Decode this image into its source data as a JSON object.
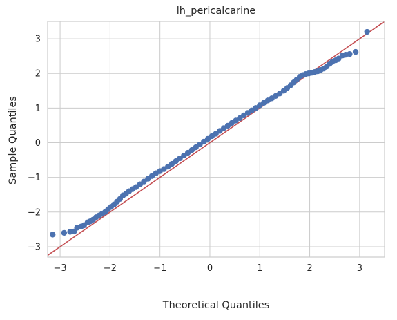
{
  "chart_data": {
    "type": "scatter",
    "title": "lh_pericalcarine",
    "xlabel": "Theoretical Quantiles",
    "ylabel": "Sample Quantiles",
    "xlim": [
      -3.25,
      3.5
    ],
    "ylim": [
      -3.3,
      3.5
    ],
    "xticks": [
      -3,
      -2,
      -1,
      0,
      1,
      2,
      3
    ],
    "yticks": [
      -3,
      -2,
      -1,
      0,
      1,
      2,
      3
    ],
    "grid": true,
    "point_color": "#4c72b0",
    "line_color": "#c44e52",
    "reference_line": {
      "slope": 1,
      "intercept": 0
    },
    "series": [
      {
        "x": [
          -3.15,
          -2.92,
          -2.8,
          -2.72,
          -2.66,
          -2.58,
          -2.52,
          -2.45,
          -2.4,
          -2.34,
          -2.28,
          -2.22,
          -2.16,
          -2.1,
          -2.04,
          -1.98,
          -1.92,
          -1.86,
          -1.8,
          -1.74,
          -1.68,
          -1.62,
          -1.55,
          -1.48,
          -1.4,
          -1.32,
          -1.24,
          -1.16,
          -1.08,
          -1.0,
          -0.92,
          -0.84,
          -0.76,
          -0.68,
          -0.6,
          -0.52,
          -0.44,
          -0.36,
          -0.28,
          -0.2,
          -0.12,
          -0.04,
          0.04,
          0.12,
          0.2,
          0.28,
          0.36,
          0.44,
          0.52,
          0.6,
          0.68,
          0.76,
          0.84,
          0.92,
          1.0,
          1.08,
          1.16,
          1.24,
          1.32,
          1.4,
          1.48,
          1.55,
          1.62,
          1.68,
          1.74,
          1.8,
          1.86,
          1.92,
          1.98,
          2.04,
          2.1,
          2.16,
          2.22,
          2.28,
          2.34,
          2.4,
          2.45,
          2.52,
          2.58,
          2.66,
          2.72,
          2.8,
          2.92,
          3.15
        ],
        "y": [
          -2.65,
          -2.6,
          -2.57,
          -2.56,
          -2.45,
          -2.42,
          -2.38,
          -2.3,
          -2.27,
          -2.22,
          -2.15,
          -2.1,
          -2.05,
          -2.0,
          -1.92,
          -1.85,
          -1.78,
          -1.7,
          -1.62,
          -1.52,
          -1.47,
          -1.4,
          -1.34,
          -1.28,
          -1.2,
          -1.12,
          -1.04,
          -0.96,
          -0.88,
          -0.82,
          -0.76,
          -0.69,
          -0.61,
          -0.53,
          -0.45,
          -0.37,
          -0.29,
          -0.21,
          -0.13,
          -0.05,
          0.03,
          0.11,
          0.19,
          0.26,
          0.34,
          0.42,
          0.49,
          0.57,
          0.64,
          0.71,
          0.79,
          0.86,
          0.93,
          1.0,
          1.08,
          1.15,
          1.22,
          1.28,
          1.35,
          1.42,
          1.5,
          1.58,
          1.66,
          1.74,
          1.82,
          1.9,
          1.95,
          1.98,
          2.0,
          2.02,
          2.04,
          2.06,
          2.1,
          2.14,
          2.2,
          2.28,
          2.33,
          2.38,
          2.43,
          2.52,
          2.54,
          2.56,
          2.62,
          3.2
        ]
      }
    ]
  }
}
